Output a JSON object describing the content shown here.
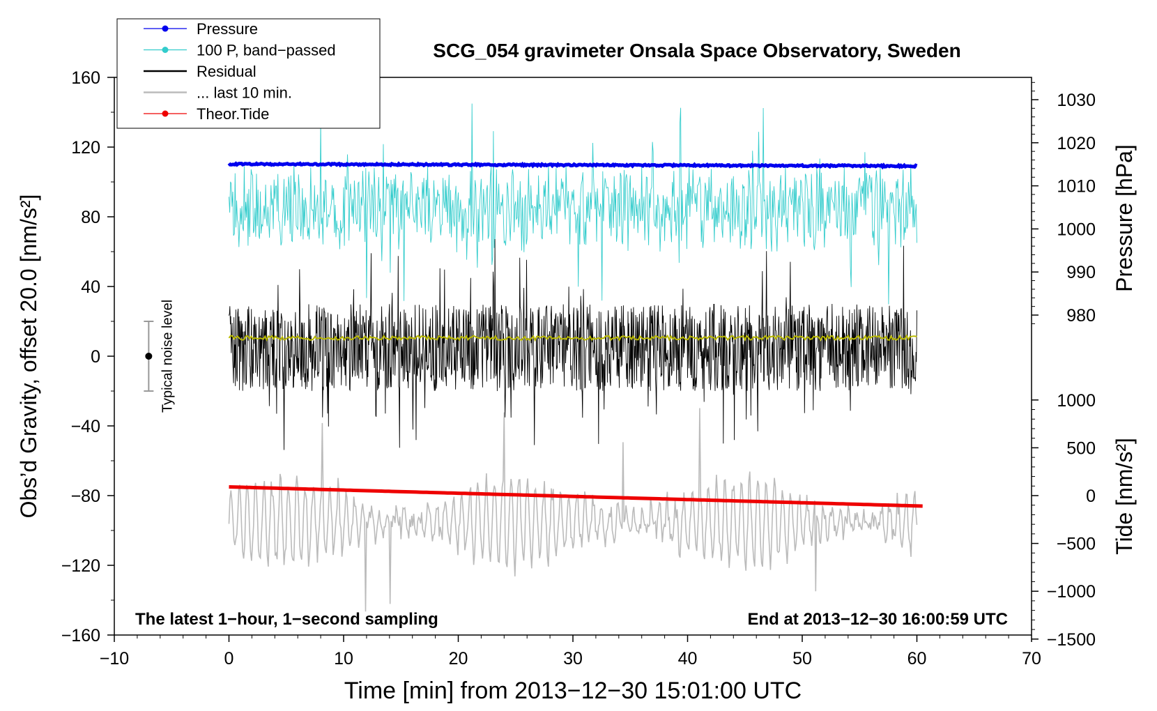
{
  "chart_data": {
    "type": "line",
    "title": "SCG_054 gravimeter Onsala Space Observatory, Sweden",
    "xlabel": "Time [min] from 2013−12−30 15:01:00 UTC",
    "ylabel_left": "Obs’d Gravity, offset 20.0 [nm/s²]",
    "ylabel_right_top": "Pressure [hPa]",
    "ylabel_right_bottom": "Tide [nm/s²]",
    "xlim": [
      -10,
      70
    ],
    "ylim": [
      -160,
      160
    ],
    "x_ticks": [
      -10,
      0,
      10,
      20,
      30,
      40,
      50,
      60,
      70
    ],
    "x_tick_labels": [
      "−10",
      "0",
      "10",
      "20",
      "30",
      "40",
      "50",
      "60",
      "70"
    ],
    "y_ticks": [
      -160,
      -120,
      -80,
      -40,
      0,
      40,
      80,
      120,
      160
    ],
    "y_tick_labels": [
      "−160",
      "−120",
      "−80",
      "−40",
      "0",
      "40",
      "80",
      "120",
      "160"
    ],
    "pressure_axis": {
      "ticks": [
        980,
        990,
        1000,
        1010,
        1020,
        1030
      ],
      "tick_labels": [
        "980",
        "990",
        "1000",
        "1010",
        "1020",
        "1030"
      ]
    },
    "tide_axis": {
      "ticks": [
        -1500,
        -1000,
        -500,
        0,
        500,
        1000
      ],
      "tick_labels": [
        "−1500",
        "−1000",
        "−500",
        "0",
        "500",
        "1000"
      ]
    },
    "series": [
      {
        "name": "Pressure",
        "color": "#0000ee",
        "style": "line-dots",
        "x_range": [
          0,
          60
        ],
        "level_y": 110,
        "pressure_hPa": 1013.5
      },
      {
        "name": "100 P, band−passed",
        "color": "#33cccc",
        "style": "line-dots",
        "x_range": [
          0,
          60
        ],
        "mean_y": 85,
        "spread": 20
      },
      {
        "name": "Residual",
        "color": "#000000",
        "style": "line",
        "x_range": [
          0,
          60
        ],
        "mean_y": 5,
        "spread": 25
      },
      {
        "name": "... last 10 min.",
        "color": "#bbbbbb",
        "style": "line",
        "x_range": [
          0,
          60
        ],
        "mean_y": -95,
        "spread": 25
      },
      {
        "name": "Theor.Tide",
        "color": "#ee0000",
        "style": "line-dots",
        "x": [
          0,
          60.5
        ],
        "y": [
          -75,
          -86
        ]
      },
      {
        "name": "smoothed residual",
        "color": "#b8b800",
        "style": "line",
        "x_range": [
          0,
          60
        ],
        "mean_y": 10.5,
        "in_legend": false
      }
    ],
    "legend_position": "top-left",
    "noise_bar": {
      "label": "Typical noise level",
      "x": -7,
      "center": 0,
      "low": -20,
      "high": 20
    },
    "annotations": {
      "bottom_left": "The latest 1−hour, 1−second sampling",
      "bottom_right": "End at 2013−12−30 16:00:59 UTC"
    }
  }
}
